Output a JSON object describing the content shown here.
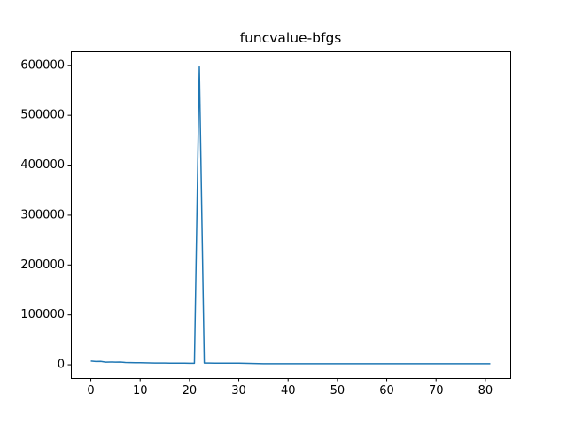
{
  "chart_data": {
    "type": "line",
    "title": "funcvalue-bfgs",
    "xlabel": "",
    "ylabel": "",
    "xlim": [
      -4.05,
      85.05
    ],
    "ylim": [
      -26500,
      628000
    ],
    "x_ticks": [
      0,
      10,
      20,
      30,
      40,
      50,
      60,
      70,
      80
    ],
    "y_ticks": [
      0,
      100000,
      200000,
      300000,
      400000,
      500000,
      600000
    ],
    "grid": false,
    "legend": "none",
    "series": [
      {
        "color": "#1f77b4",
        "x": [
          0,
          1,
          2,
          3,
          4,
          5,
          6,
          7,
          8,
          9,
          10,
          11,
          12,
          13,
          14,
          15,
          16,
          17,
          18,
          19,
          20,
          21,
          22,
          23,
          24,
          25,
          26,
          27,
          28,
          29,
          30,
          31,
          32,
          33,
          34,
          35,
          36,
          37,
          38,
          39,
          40,
          41,
          42,
          43,
          44,
          45,
          46,
          47,
          48,
          49,
          50,
          51,
          52,
          53,
          54,
          55,
          56,
          57,
          57,
          58,
          59,
          60,
          61,
          62,
          63,
          64,
          65,
          66,
          67,
          68,
          69,
          70,
          71,
          72,
          73,
          74,
          75,
          76,
          77,
          78,
          79,
          80,
          81
        ],
        "y": [
          7500,
          6500,
          6800,
          5200,
          5400,
          5300,
          5400,
          4500,
          4300,
          4100,
          4000,
          3800,
          3600,
          3500,
          3400,
          3400,
          3300,
          3300,
          3200,
          3100,
          3000,
          3000,
          597000,
          3500,
          3400,
          3300,
          3300,
          3300,
          3300,
          3300,
          3200,
          2900,
          2700,
          2500,
          2300,
          2100,
          2000,
          2000,
          2000,
          2000,
          2000,
          2000,
          2000,
          2000,
          2000,
          2000,
          2000,
          2000,
          2000,
          2000,
          2000,
          2000,
          2000,
          2000,
          2000,
          2000,
          2000,
          2000,
          2000,
          2000,
          2000,
          2000,
          2000,
          2000,
          2000,
          2000,
          2000,
          2000,
          2000,
          2000,
          2000,
          2000,
          2000,
          2000,
          2000,
          2000,
          2000,
          2000,
          2000,
          2000,
          2000,
          2000,
          2000
        ]
      }
    ]
  }
}
